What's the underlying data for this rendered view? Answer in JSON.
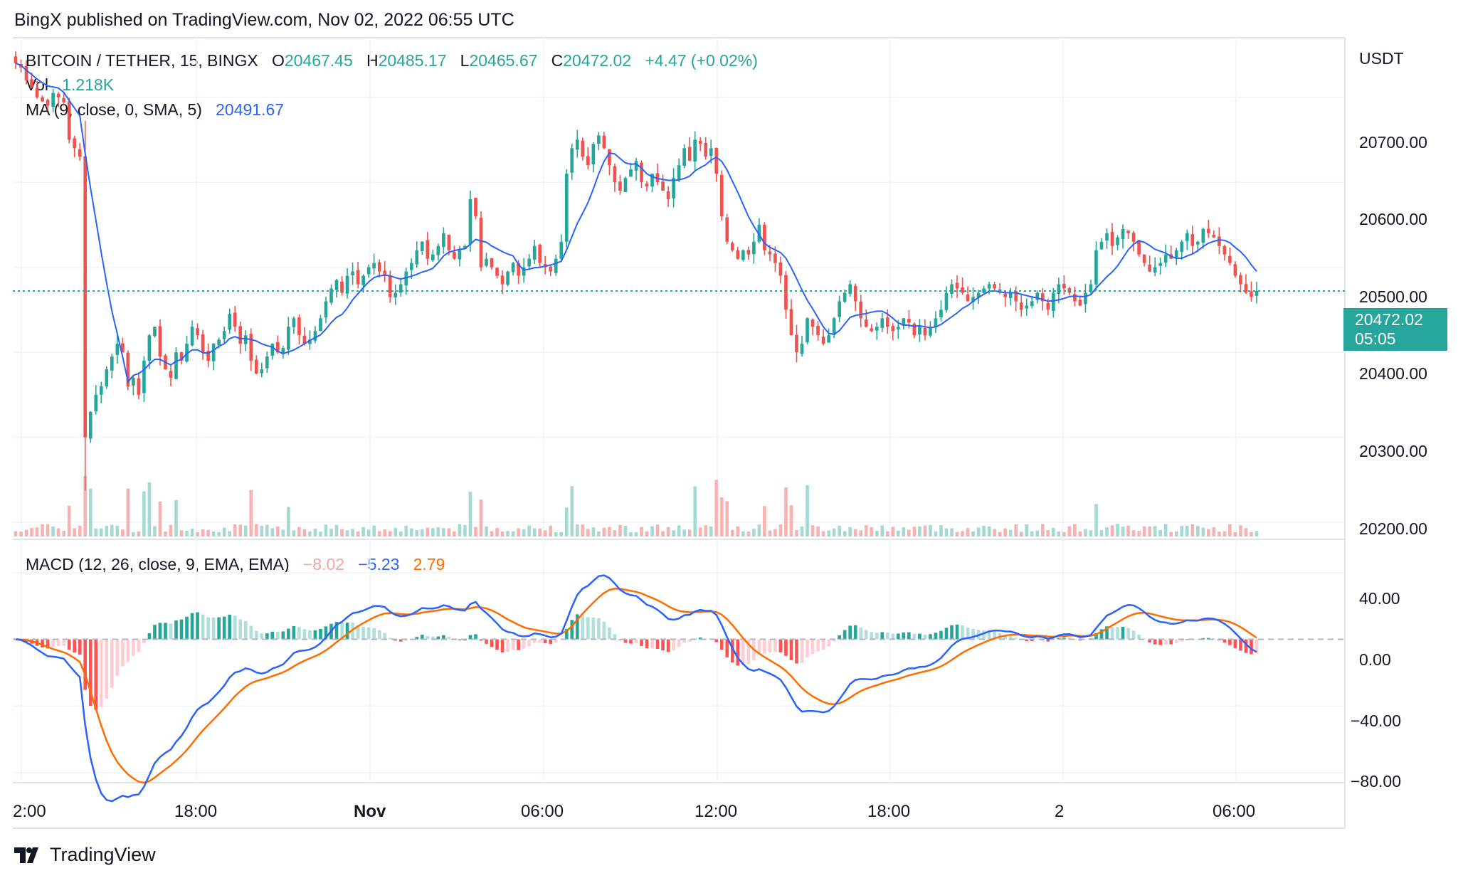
{
  "header": {
    "published": "BingX published on TradingView.com, Nov 02, 2022 06:55 UTC"
  },
  "legend": {
    "symbol": "BITCOIN / TETHER, 15, BINGX",
    "o_label": "O",
    "o": "20467.45",
    "h_label": "H",
    "h": "20485.17",
    "l_label": "L",
    "l": "20465.67",
    "c_label": "C",
    "c": "20472.02",
    "change": "+4.47 (+0.02%)",
    "vol_label": "Vol",
    "vol": "1.218K",
    "ma_label": "MA (9, close, 0, SMA, 5)",
    "ma": "20491.67",
    "macd_label": "MACD (12, 26, close, 9, EMA, EMA)",
    "macd_hist": "−8.02",
    "macd_line": "−5.23",
    "macd_signal": "2.79"
  },
  "price_axis": {
    "unit": "USDT",
    "ticks": [
      "20700.00",
      "20600.00",
      "20500.00",
      "20400.00",
      "20300.00",
      "20200.00"
    ],
    "current_price": "20472.02",
    "countdown": "05:05"
  },
  "macd_axis": {
    "ticks": [
      "40.00",
      "0.00",
      "−40.00",
      "−80.00"
    ]
  },
  "time_axis": {
    "ticks": [
      "2:00",
      "18:00",
      "Nov",
      "06:00",
      "12:00",
      "18:00",
      "2",
      "06:00"
    ]
  },
  "footer": {
    "brand": "TradingView"
  },
  "colors": {
    "up": "#26a69a",
    "down": "#ef5350",
    "ma": "#2962ff",
    "signal": "#ff6d00",
    "hist_up_strong": "#26a69a",
    "hist_up_weak": "#b2dfdb",
    "hist_down_strong": "#ff5252",
    "hist_down_weak": "#ffcdd2"
  },
  "chart_data": {
    "type": "candlestick",
    "interval": "15",
    "price_range": [
      20180,
      20770
    ],
    "macd_range": [
      -86,
      60
    ],
    "closes": [
      20740,
      20735,
      20720,
      20712,
      20700,
      20695,
      20690,
      20705,
      20700,
      20694,
      20650,
      20640,
      20630,
      20300,
      20330,
      20350,
      20360,
      20380,
      20395,
      20410,
      20400,
      20360,
      20370,
      20350,
      20390,
      20420,
      20430,
      20395,
      20380,
      20370,
      20400,
      20390,
      20410,
      20430,
      20420,
      20400,
      20390,
      20410,
      20415,
      20425,
      20445,
      20430,
      20410,
      20420,
      20390,
      20375,
      20380,
      20395,
      20410,
      20400,
      20405,
      20430,
      20440,
      20420,
      20410,
      20415,
      20425,
      20440,
      20460,
      20475,
      20485,
      20470,
      20490,
      20495,
      20480,
      20490,
      20500,
      20505,
      20495,
      20490,
      20465,
      20470,
      20480,
      20495,
      20505,
      20520,
      20530,
      20510,
      20515,
      20525,
      20540,
      20520,
      20510,
      20520,
      20525,
      20580,
      20560,
      20500,
      20510,
      20500,
      20490,
      20480,
      20495,
      20505,
      20490,
      20500,
      20510,
      20525,
      20505,
      20500,
      20495,
      20510,
      20530,
      20610,
      20640,
      20650,
      20630,
      20620,
      20645,
      20655,
      20640,
      20620,
      20600,
      20590,
      20605,
      20615,
      20625,
      20600,
      20595,
      20610,
      20600,
      20590,
      20580,
      20605,
      20620,
      20640,
      20625,
      20650,
      20645,
      20630,
      20640,
      20610,
      20560,
      20530,
      20520,
      20510,
      20520,
      20515,
      20530,
      20550,
      20520,
      20515,
      20505,
      20490,
      20450,
      20420,
      20400,
      20410,
      20440,
      20430,
      20420,
      20410,
      20420,
      20440,
      20460,
      20470,
      20480,
      20460,
      20440,
      20430,
      20425,
      20430,
      20440,
      20430,
      20425,
      20430,
      20440,
      20435,
      20420,
      20430,
      20420,
      20430,
      20440,
      20450,
      20470,
      20480,
      20475,
      20470,
      20460,
      20465,
      20470,
      20475,
      20480,
      20475,
      20470,
      20465,
      20470,
      20460,
      20450,
      20455,
      20460,
      20470,
      20460,
      20450,
      20470,
      20480,
      20475,
      20470,
      20460,
      20455,
      20470,
      20480,
      20520,
      20530,
      20540,
      20525,
      20535,
      20545,
      20540,
      20530,
      20515,
      20505,
      20495,
      20500,
      20505,
      20515,
      20510,
      20520,
      20530,
      20540,
      20525,
      20530,
      20545,
      20540,
      20535,
      20525,
      20515,
      20505,
      20490,
      20480,
      20470,
      20465,
      20472
    ]
  }
}
